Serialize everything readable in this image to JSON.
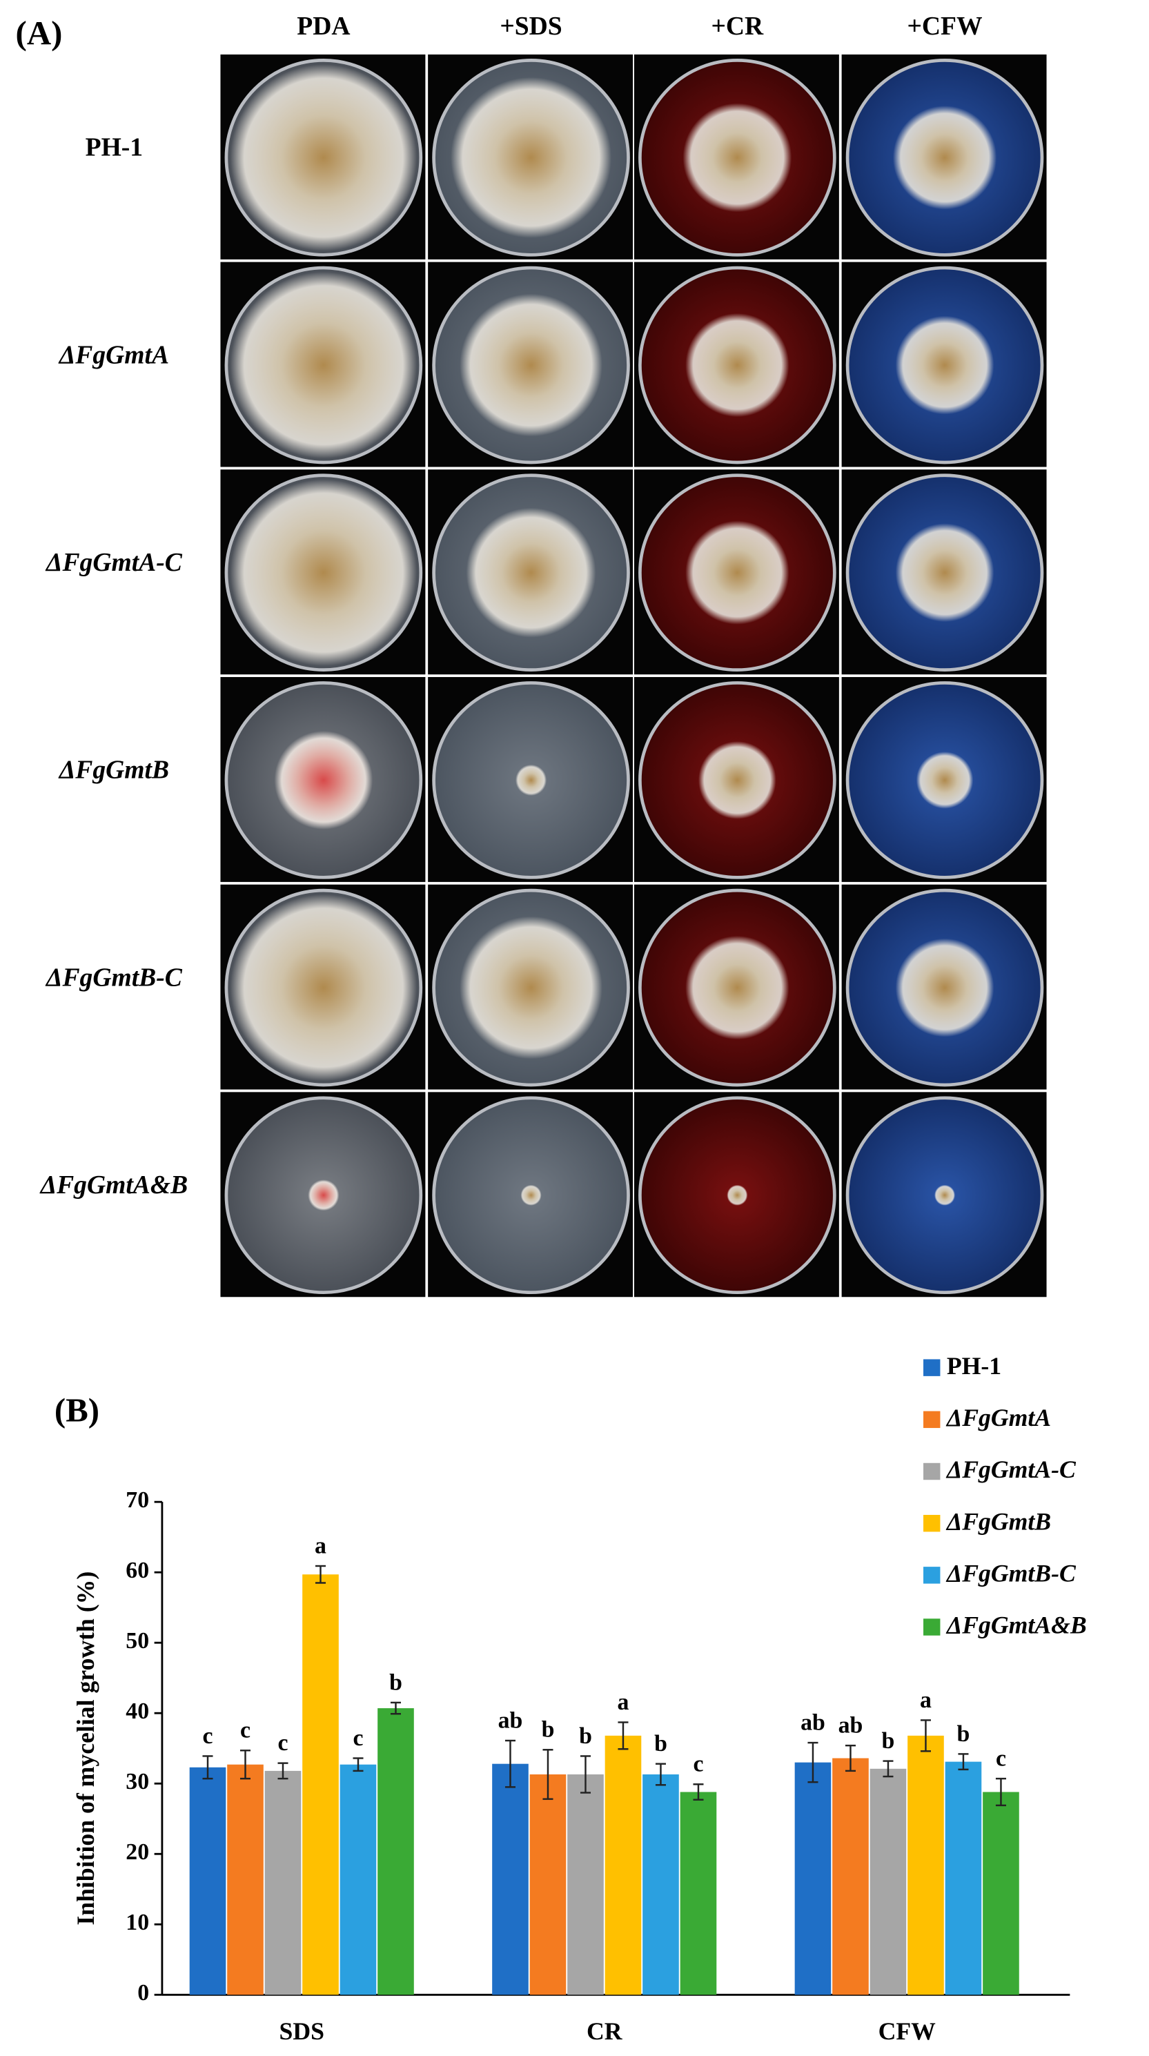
{
  "panel_a": {
    "label": "(A)",
    "columns": [
      "PDA",
      "+SDS",
      "+CR",
      "+CFW"
    ],
    "rows": [
      "PH-1",
      "ΔFgGmtA",
      "ΔFgGmtA-C",
      "ΔFgGmtB",
      "ΔFgGmtB-C",
      "ΔFgGmtA&B"
    ]
  },
  "chart_data": {
    "type": "bar",
    "panel_label": "(B)",
    "y_label": "Inhibition of mycelial growth (%)",
    "categories": [
      "SDS",
      "CR",
      "CFW"
    ],
    "ylim": [
      0,
      70
    ],
    "yticks": [
      0,
      10,
      20,
      30,
      40,
      50,
      60,
      70
    ],
    "series": [
      {
        "name": "PH-1",
        "color": "#1f6fc6",
        "values": [
          32.3,
          32.8,
          33.0
        ],
        "errors": [
          1.6,
          3.3,
          2.8
        ],
        "significance": [
          "c",
          "ab",
          "ab"
        ]
      },
      {
        "name": "ΔFgGmtA",
        "color": "#f47b20",
        "values": [
          32.7,
          31.3,
          33.6
        ],
        "errors": [
          2.0,
          3.5,
          1.8
        ],
        "significance": [
          "c",
          "b",
          "ab"
        ]
      },
      {
        "name": "ΔFgGmtA-C",
        "color": "#a6a6a6",
        "values": [
          31.8,
          31.3,
          32.1
        ],
        "errors": [
          1.1,
          2.6,
          1.1
        ],
        "significance": [
          "c",
          "b",
          "b"
        ]
      },
      {
        "name": "ΔFgGmtB",
        "color": "#ffc000",
        "values": [
          59.7,
          36.8,
          36.8
        ],
        "errors": [
          1.2,
          1.9,
          2.2
        ],
        "significance": [
          "a",
          "a",
          "a"
        ]
      },
      {
        "name": "ΔFgGmtB-C",
        "color": "#2ba0e0",
        "values": [
          32.7,
          31.3,
          33.1
        ],
        "errors": [
          0.9,
          1.5,
          1.1
        ],
        "significance": [
          "c",
          "b",
          "b"
        ]
      },
      {
        "name": "ΔFgGmtA&B",
        "color": "#3aaa35",
        "values": [
          40.7,
          28.8,
          28.8
        ],
        "errors": [
          0.8,
          1.1,
          1.9
        ],
        "significance": [
          "b",
          "c",
          "c"
        ]
      }
    ]
  }
}
